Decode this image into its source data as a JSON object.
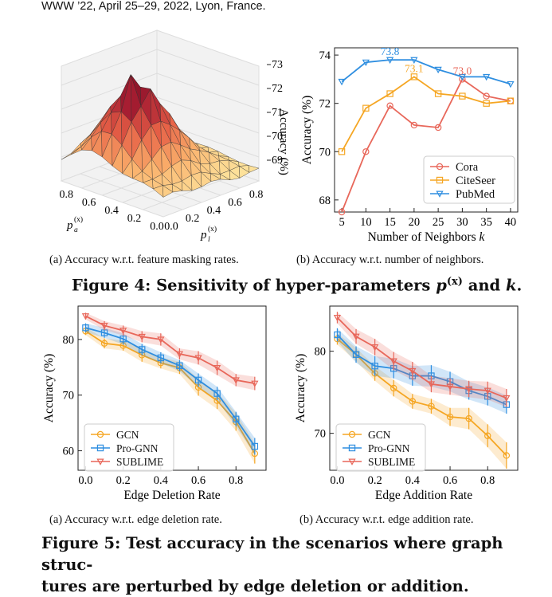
{
  "header": "WWW ’22, April 25–29, 2022, Lyon, France.",
  "fig4": {
    "caption_prefix": "Figure 4: Sensitivity of hyper-parameters",
    "caption_p": "p",
    "caption_sup": "(x)",
    "caption_and": "and",
    "caption_k": "k",
    "caption_end": ".",
    "sub_a": "(a)  Accuracy w.r.t. feature masking rates.",
    "sub_b": "(b)  Accuracy w.r.t. number of neighbors."
  },
  "fig5": {
    "caption_line1": "Figure 5: Test accuracy in the scenarios where graph struc-",
    "caption_line2": "tures are perturbed by edge deletion or addition.",
    "sub_a": "(a)  Accuracy w.r.t. edge deletion rate.",
    "sub_b": "(b)  Accuracy w.r.t. edge addition rate."
  },
  "surface": {
    "zlabel": "Accuracy (%)",
    "z_ticks": [
      "73",
      "72",
      "71",
      "70",
      "69"
    ],
    "pa_label": "p",
    "pa_sub": "a",
    "pa_sup": "(x)",
    "pl_label": "p",
    "pl_sub": "l",
    "pl_sup": "(x)",
    "pa_ticks": [
      "0.8",
      "0.6",
      "0.4",
      "0.2",
      "0.0"
    ],
    "pl_ticks": [
      "0.8",
      "0.6",
      "0.4",
      "0.2",
      "0.0"
    ]
  },
  "chart_data": [
    {
      "type": "line",
      "id": "neighbors",
      "xlabel": "Number of Neighbors",
      "xlabel_k": "k",
      "ylabel": "Accuracy (%)",
      "x": [
        5,
        10,
        15,
        20,
        25,
        30,
        35,
        40
      ],
      "xlim": [
        3.5,
        41.5
      ],
      "ylim": [
        67.5,
        74.3
      ],
      "yticks": [
        68,
        70,
        72,
        74
      ],
      "series": [
        {
          "name": "Cora",
          "color": "#e8675a",
          "marker": "circle",
          "values": [
            67.5,
            70.0,
            71.9,
            71.1,
            71.0,
            73.0,
            72.3,
            72.1
          ]
        },
        {
          "name": "CiteSeer",
          "color": "#f5a623",
          "marker": "square",
          "values": [
            70.0,
            71.8,
            72.4,
            73.1,
            72.4,
            72.3,
            72.0,
            72.1
          ]
        },
        {
          "name": "PubMed",
          "color": "#2e8ee0",
          "marker": "triangle",
          "values": [
            72.9,
            73.7,
            73.8,
            73.8,
            73.4,
            73.1,
            73.1,
            72.8
          ]
        }
      ],
      "annotations": [
        {
          "text": "73.8",
          "x": 15,
          "y": 73.8,
          "color": "#2e8ee0"
        },
        {
          "text": "73.1",
          "x": 20,
          "y": 73.1,
          "color": "#f5a623"
        },
        {
          "text": "73.0",
          "x": 30,
          "y": 73.0,
          "color": "#e8675a"
        }
      ]
    },
    {
      "type": "line",
      "id": "deletion",
      "xlabel": "Edge Deletion Rate",
      "ylabel": "Accuracy (%)",
      "x": [
        0.0,
        0.1,
        0.2,
        0.3,
        0.4,
        0.5,
        0.6,
        0.7,
        0.8,
        0.9
      ],
      "xlim": [
        -0.04,
        0.96
      ],
      "ylim": [
        56.5,
        86
      ],
      "xticks": [
        0.0,
        0.2,
        0.4,
        0.6,
        0.8
      ],
      "xtick_labels": [
        "0.0",
        "0.2",
        "0.4",
        "0.6",
        "0.8"
      ],
      "yticks": [
        60,
        70,
        80
      ],
      "series": [
        {
          "name": "GCN",
          "color": "#f5a623",
          "marker": "circle",
          "values": [
            81.5,
            79.3,
            78.9,
            77.2,
            75.8,
            74.9,
            71.4,
            69.0,
            65.2,
            59.5
          ],
          "err": [
            0.7,
            0.9,
            0.9,
            1.2,
            1.0,
            1.1,
            1.5,
            1.5,
            1.6,
            1.8
          ]
        },
        {
          "name": "Pro-GNN",
          "color": "#2e8ee0",
          "marker": "square",
          "values": [
            82.1,
            81.2,
            80.1,
            78.2,
            76.7,
            75.3,
            72.7,
            70.3,
            65.7,
            60.8
          ],
          "err": [
            0.8,
            0.9,
            1.0,
            1.0,
            1.0,
            1.0,
            1.2,
            1.2,
            1.3,
            1.5
          ]
        },
        {
          "name": "SUBLIME",
          "color": "#e8675a",
          "marker": "triangle",
          "values": [
            84.2,
            82.5,
            81.6,
            80.5,
            80.0,
            77.4,
            76.7,
            74.9,
            72.7,
            72.1
          ],
          "err": [
            0.6,
            0.8,
            0.9,
            1.0,
            1.1,
            1.0,
            1.2,
            1.3,
            1.1,
            1.2
          ]
        }
      ]
    },
    {
      "type": "line",
      "id": "addition",
      "xlabel": "Edge Addition Rate",
      "ylabel": "Accuracy (%)",
      "x": [
        0.0,
        0.1,
        0.2,
        0.3,
        0.4,
        0.5,
        0.6,
        0.7,
        0.8,
        0.9
      ],
      "xlim": [
        -0.04,
        0.96
      ],
      "ylim": [
        65.5,
        85.5
      ],
      "xticks": [
        0.0,
        0.2,
        0.4,
        0.6,
        0.8
      ],
      "xtick_labels": [
        "0.0",
        "0.2",
        "0.4",
        "0.6",
        "0.8"
      ],
      "yticks": [
        70,
        80
      ],
      "series": [
        {
          "name": "GCN",
          "color": "#f5a623",
          "marker": "circle",
          "values": [
            81.5,
            79.6,
            77.3,
            75.5,
            73.9,
            73.3,
            72.0,
            71.8,
            69.7,
            67.3
          ],
          "err": [
            0.7,
            0.8,
            0.9,
            1.0,
            0.9,
            0.9,
            1.1,
            1.3,
            1.4,
            1.6
          ]
        },
        {
          "name": "Pro-GNN",
          "color": "#2e8ee0",
          "marker": "square",
          "values": [
            82.0,
            79.6,
            78.2,
            77.9,
            77.0,
            77.0,
            76.3,
            75.2,
            74.5,
            73.5
          ],
          "err": [
            0.8,
            1.0,
            1.2,
            1.2,
            1.2,
            1.3,
            1.2,
            1.1,
            1.1,
            1.1
          ]
        },
        {
          "name": "SUBLIME",
          "color": "#e8675a",
          "marker": "triangle",
          "values": [
            84.1,
            81.8,
            80.5,
            78.8,
            77.6,
            76.0,
            75.7,
            75.4,
            75.2,
            74.3
          ],
          "err": [
            0.7,
            0.9,
            1.0,
            1.1,
            1.1,
            1.0,
            1.0,
            1.0,
            1.1,
            1.1
          ]
        }
      ]
    }
  ]
}
